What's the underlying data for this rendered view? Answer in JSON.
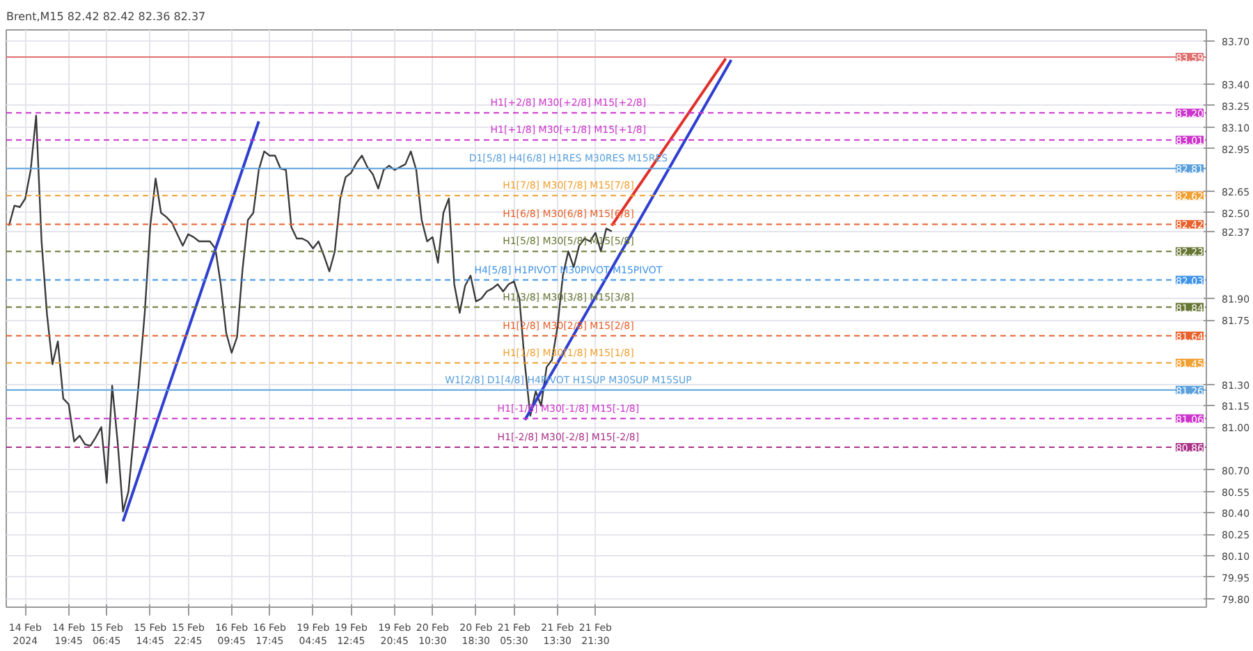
{
  "chart_data": {
    "type": "line",
    "title": "Brent,M15 82.42 82.42 82.36 82.37",
    "categories": [
      null,
      null,
      null,
      "14 Feb 2024",
      null,
      null,
      null,
      null,
      null,
      null,
      null,
      "14 Feb 19:45",
      null,
      null,
      null,
      null,
      null,
      null,
      "15 Feb 06:45",
      null,
      null,
      null,
      null,
      null,
      null,
      null,
      "15 Feb 14:45",
      null,
      null,
      null,
      null,
      null,
      null,
      "15 Feb 22:45",
      null,
      null,
      null,
      null,
      null,
      null,
      null,
      "16 Feb 09:45",
      null,
      null,
      null,
      null,
      null,
      null,
      "16 Feb 17:45",
      null,
      null,
      null,
      null,
      null,
      null,
      null,
      "19 Feb 04:45",
      null,
      null,
      null,
      null,
      null,
      null,
      "19 Feb 12:45",
      null,
      null,
      null,
      null,
      null,
      null,
      null,
      "19 Feb 20:45",
      null,
      null,
      null,
      null,
      null,
      null,
      "20 Feb 10:30",
      null,
      null,
      null,
      null,
      null,
      null,
      null,
      "20 Feb 18:30",
      null,
      null,
      null,
      null,
      null,
      null,
      "21 Feb 05:30",
      null,
      null,
      null,
      null,
      null,
      null,
      null,
      "21 Feb 13:30",
      null,
      null,
      null,
      null,
      null,
      null,
      "21 Feb 21:30",
      null,
      null,
      null,
      null,
      null,
      null,
      null,
      null,
      null,
      null,
      null,
      null,
      null,
      null,
      null,
      null,
      null,
      null,
      null,
      null,
      null,
      null,
      null,
      null,
      null,
      null,
      null,
      null,
      null,
      null,
      null,
      null,
      null,
      null,
      null,
      null,
      null,
      null,
      null,
      null,
      null,
      null,
      null,
      null,
      null,
      null,
      null,
      null,
      null,
      null,
      null,
      null,
      null,
      null,
      null,
      null,
      null,
      null,
      null,
      null,
      null,
      null,
      null,
      null,
      null,
      null,
      null,
      null,
      null,
      null,
      null,
      null,
      null,
      null,
      null,
      null,
      null,
      null,
      null,
      null,
      null,
      null,
      null,
      null,
      null,
      null,
      null,
      null,
      null,
      null,
      null,
      null,
      null,
      null,
      null,
      null,
      null,
      null,
      null,
      null,
      null,
      null,
      null,
      null,
      null,
      null,
      null,
      null,
      null,
      null,
      null,
      null
    ],
    "ylim": [
      79.74,
      83.78
    ],
    "yticks": [
      {
        "value": 79.8,
        "label": "79.80"
      },
      {
        "value": 79.95,
        "label": "79.95"
      },
      {
        "value": 80.1,
        "label": "80.10"
      },
      {
        "value": 80.25,
        "label": "80.25"
      },
      {
        "value": 80.4,
        "label": "80.40"
      },
      {
        "value": 80.55,
        "label": "80.55"
      },
      {
        "value": 80.7,
        "label": "80.70"
      },
      {
        "value": 81.0,
        "label": "81.00"
      },
      {
        "value": 81.15,
        "label": "81.15"
      },
      {
        "value": 81.3,
        "label": "81.30"
      },
      {
        "value": 81.75,
        "label": "81.75"
      },
      {
        "value": 81.9,
        "label": "81.90"
      },
      {
        "value": 82.37,
        "label": "82.37"
      },
      {
        "value": 82.5,
        "label": "82.50"
      },
      {
        "value": 82.65,
        "label": "82.65"
      },
      {
        "value": 82.95,
        "label": "82.95"
      },
      {
        "value": 83.1,
        "label": "83.10"
      },
      {
        "value": 83.25,
        "label": "83.25"
      },
      {
        "value": 83.4,
        "label": "83.40"
      },
      {
        "value": 83.7,
        "label": "83.70"
      }
    ],
    "annotations": [
      {
        "text": "83.59",
        "y": 83.59
      },
      {
        "text": "83.20",
        "y": 83.2
      },
      {
        "text": "83.01",
        "y": 83.01
      },
      {
        "text": "82.81",
        "y": 82.81
      },
      {
        "text": "82.62",
        "y": 82.62
      },
      {
        "text": "82.42",
        "y": 82.42
      },
      {
        "text": "82.23",
        "y": 82.23
      },
      {
        "text": "82.03",
        "y": 82.03
      },
      {
        "text": "81.84",
        "y": 81.84
      },
      {
        "text": "81.64",
        "y": 81.64
      },
      {
        "text": "81.45",
        "y": 81.45
      },
      {
        "text": "81.26",
        "y": 81.26
      },
      {
        "text": "81.06",
        "y": 81.06
      },
      {
        "text": "80.86",
        "y": 80.86
      }
    ],
    "grid": true,
    "series": [
      {
        "color": "#3a3a3a",
        "values": [
          82.41,
          82.55,
          82.54,
          82.6,
          82.8,
          83.18,
          82.3,
          81.79,
          81.44,
          81.6,
          81.2,
          81.16,
          80.9,
          80.94,
          80.88,
          80.87,
          80.93,
          81.0,
          80.61,
          81.29,
          80.9,
          80.41,
          80.55,
          80.95,
          81.35,
          81.8,
          82.4,
          82.74,
          82.5,
          82.47,
          82.43,
          82.35,
          82.27,
          82.35,
          82.33,
          82.3,
          82.3,
          82.3,
          82.25,
          82.0,
          81.66,
          81.52,
          81.63,
          82.1,
          82.45,
          82.5,
          82.8,
          82.93,
          82.9,
          82.9,
          82.81,
          82.8,
          82.4,
          82.32,
          82.32,
          82.3,
          82.25,
          82.3,
          82.2,
          82.09,
          82.23,
          82.6,
          82.75,
          82.78,
          82.85,
          82.9,
          82.82,
          82.77,
          82.67,
          82.8,
          82.83,
          82.8,
          82.82,
          82.84,
          82.93,
          82.8,
          82.45,
          82.3,
          82.33,
          82.15,
          82.5,
          82.6,
          82.0,
          81.8,
          81.99,
          82.06,
          81.88,
          81.9,
          81.95,
          81.97,
          82.0,
          81.95,
          82.0,
          82.02,
          81.9,
          81.44,
          81.08,
          81.25,
          81.15,
          81.42,
          81.47,
          81.7,
          82.06,
          82.23,
          82.12,
          82.27,
          82.32,
          82.3,
          82.36,
          82.23,
          82.39,
          82.37,
          null,
          null,
          null,
          null,
          null,
          null,
          null,
          null,
          null,
          null,
          null,
          null,
          null,
          null,
          null,
          null,
          null,
          null,
          null,
          null,
          null,
          null,
          null,
          null,
          null,
          null,
          null,
          null,
          null,
          null,
          null,
          null,
          null,
          null,
          null,
          null,
          null,
          null,
          null,
          null,
          null,
          null,
          null,
          null,
          null,
          null,
          null,
          null,
          null,
          null,
          null,
          null,
          null,
          null,
          null,
          null,
          null,
          null,
          null,
          null,
          null,
          null,
          null,
          null,
          null,
          null,
          null,
          null,
          null,
          null,
          null,
          null,
          null,
          null,
          null,
          null,
          null,
          null,
          null,
          null,
          null,
          null,
          null,
          null,
          null,
          null,
          null,
          null,
          null,
          null,
          null,
          null,
          null,
          null,
          null,
          null,
          null,
          null,
          null,
          null,
          null,
          null,
          null,
          null,
          null,
          null,
          null,
          null,
          null
        ]
      },
      {
        "color": "#2f3fcf",
        "values": [
          null,
          null,
          null,
          null,
          null,
          null,
          null,
          null,
          null,
          null,
          null,
          null,
          null,
          null,
          null,
          null,
          null,
          null,
          null,
          null,
          null,
          80.34,
          null,
          null,
          null,
          null,
          null,
          null,
          null,
          null,
          null,
          null,
          null,
          null,
          null,
          null,
          null,
          null,
          null,
          null,
          null,
          null,
          null,
          null,
          null,
          null,
          83.14,
          null,
          null,
          null,
          null,
          null,
          null,
          null,
          null,
          null,
          null,
          null,
          null,
          null,
          null,
          null,
          null,
          null,
          null,
          null,
          null,
          null,
          null,
          null,
          null,
          null,
          null,
          null,
          null,
          null,
          null,
          null,
          null,
          null,
          null,
          null,
          null,
          null,
          null,
          null,
          null,
          null,
          null,
          null,
          null,
          null,
          null,
          null,
          null,
          null,
          null,
          null,
          null,
          null,
          null,
          null,
          null,
          null,
          null,
          null,
          null,
          null,
          null,
          null,
          null,
          null,
          null,
          null,
          null,
          null,
          null,
          null,
          null,
          null,
          null,
          null,
          null,
          null,
          null,
          null,
          null,
          null,
          null,
          null,
          null,
          null,
          null,
          null,
          null,
          null,
          null,
          null,
          null,
          null,
          null,
          null,
          null,
          null,
          null,
          null,
          null,
          null,
          null,
          null,
          null,
          null,
          null,
          null,
          null,
          null,
          null,
          null,
          null,
          null,
          null,
          null,
          null,
          null,
          null,
          null,
          null,
          null,
          null,
          null,
          null,
          null,
          null,
          null,
          null,
          null,
          null,
          null,
          null,
          null,
          null,
          null,
          null,
          null,
          null,
          null,
          null,
          null,
          null,
          null,
          null,
          null,
          null,
          null,
          null,
          null,
          null,
          null,
          null,
          null,
          null,
          null,
          null,
          null,
          null,
          null,
          null,
          null,
          null,
          null,
          null,
          null,
          null,
          null,
          null,
          null,
          null,
          null,
          null,
          null,
          null
        ]
      },
      {
        "color": "#2f3fcf",
        "values": [
          null,
          null,
          null,
          null,
          null,
          null,
          null,
          null,
          null,
          null,
          null,
          null,
          null,
          null,
          null,
          null,
          null,
          null,
          null,
          null,
          null,
          null,
          null,
          null,
          null,
          null,
          null,
          null,
          null,
          null,
          null,
          null,
          null,
          null,
          null,
          null,
          null,
          null,
          null,
          null,
          null,
          null,
          null,
          null,
          null,
          null,
          null,
          null,
          null,
          null,
          null,
          null,
          null,
          null,
          null,
          null,
          null,
          null,
          null,
          null,
          null,
          null,
          null,
          null,
          null,
          null,
          null,
          null,
          null,
          null,
          null,
          null,
          null,
          null,
          null,
          null,
          null,
          null,
          null,
          null,
          null,
          null,
          null,
          null,
          null,
          null,
          null,
          null,
          null,
          null,
          null,
          null,
          null,
          null,
          null,
          81.05,
          null,
          null,
          null,
          null,
          null,
          null,
          null,
          null,
          null,
          null,
          null,
          null,
          null,
          null,
          null,
          null,
          null,
          null,
          null,
          null,
          null,
          null,
          null,
          null,
          null,
          null,
          null,
          null,
          null,
          null,
          null,
          null,
          null,
          null,
          null,
          null,
          null,
          83.57,
          null,
          null,
          null,
          null,
          null,
          null,
          null,
          null,
          null,
          null,
          null,
          null,
          null,
          null,
          null,
          null,
          null,
          null,
          null,
          null,
          null,
          null,
          null,
          null,
          null,
          null,
          null,
          null,
          null,
          null,
          null,
          null,
          null,
          null,
          null,
          null,
          null,
          null,
          null,
          null,
          null,
          null,
          null,
          null,
          null,
          null,
          null,
          null,
          null,
          null,
          null,
          null,
          null,
          null,
          null,
          null,
          null,
          null,
          null,
          null,
          null,
          null,
          null,
          null,
          null,
          null,
          null,
          null,
          null,
          null,
          null,
          null,
          null,
          null,
          null,
          null,
          null,
          null,
          null,
          null,
          null,
          null,
          null,
          null,
          null,
          null,
          null
        ]
      },
      {
        "color": "#e0302a",
        "values": [
          null,
          null,
          null,
          null,
          null,
          null,
          null,
          null,
          null,
          null,
          null,
          null,
          null,
          null,
          null,
          null,
          null,
          null,
          null,
          null,
          null,
          null,
          null,
          null,
          null,
          null,
          null,
          null,
          null,
          null,
          null,
          null,
          null,
          null,
          null,
          null,
          null,
          null,
          null,
          null,
          null,
          null,
          null,
          null,
          null,
          null,
          null,
          null,
          null,
          null,
          null,
          null,
          null,
          null,
          null,
          null,
          null,
          null,
          null,
          null,
          null,
          null,
          null,
          null,
          null,
          null,
          null,
          null,
          null,
          null,
          null,
          null,
          null,
          null,
          null,
          null,
          null,
          null,
          null,
          null,
          null,
          null,
          null,
          null,
          null,
          null,
          null,
          null,
          null,
          null,
          null,
          null,
          null,
          null,
          null,
          null,
          null,
          null,
          null,
          null,
          null,
          null,
          null,
          null,
          null,
          null,
          null,
          null,
          null,
          null,
          null,
          82.41,
          null,
          null,
          null,
          null,
          null,
          null,
          null,
          null,
          null,
          null,
          null,
          null,
          null,
          null,
          null,
          null,
          null,
          null,
          null,
          null,
          83.58,
          null,
          null,
          null,
          null,
          null,
          null,
          null,
          null,
          null,
          null,
          null,
          null,
          null,
          null,
          null,
          null,
          null,
          null,
          null,
          null,
          null,
          null,
          null,
          null,
          null,
          null,
          null,
          null,
          null,
          null,
          null,
          null,
          null,
          null,
          null,
          null,
          null,
          null,
          null,
          null,
          null,
          null,
          null,
          null,
          null,
          null,
          null,
          null,
          null,
          null,
          null,
          null,
          null,
          null,
          null,
          null,
          null,
          null,
          null,
          null,
          null,
          null,
          null,
          null,
          null,
          null,
          null,
          null,
          null,
          null,
          null,
          null,
          null,
          null,
          null,
          null,
          null,
          null,
          null,
          null,
          null,
          null,
          null,
          null,
          null,
          null,
          null,
          null
        ]
      }
    ],
    "ref_lines": [
      {
        "axis": "y",
        "value": 83.59,
        "label": null,
        "color": "#e07070",
        "line_style": "solid"
      },
      {
        "axis": "y",
        "value": 83.2,
        "label": "H1[+2/8] M30[+2/8] M15[+2/8]",
        "color": "#cc33cc",
        "line_style": "dashed"
      },
      {
        "axis": "y",
        "value": 83.01,
        "label": "H1[+1/8] M30[+1/8] M15[+1/8]",
        "color": "#cc33cc",
        "line_style": "dashed"
      },
      {
        "axis": "y",
        "value": 82.81,
        "label": "D1[5/8] H4[6/8] H1RES M30RES M15RES",
        "color": "#5aa0dc",
        "line_style": "solid"
      },
      {
        "axis": "y",
        "value": 82.62,
        "label": "H1[7/8] M30[7/8] M15[7/8]",
        "color": "#f0a030",
        "line_style": "dashed"
      },
      {
        "axis": "y",
        "value": 82.42,
        "label": "H1[6/8] M30[6/8] M15[6/8]",
        "color": "#e8602a",
        "line_style": "dashed"
      },
      {
        "axis": "y",
        "value": 82.23,
        "label": "H1[5/8] M30[5/8] M15[5/8]",
        "color": "#667733",
        "line_style": "dashed"
      },
      {
        "axis": "y",
        "value": 82.03,
        "label": "H4[5/8] H1PIVOT M30PIVOT M15PIVOT",
        "color": "#3f93e8",
        "line_style": "dashed"
      },
      {
        "axis": "y",
        "value": 81.84,
        "label": "H1[3/8] M30[3/8] M15[3/8]",
        "color": "#667733",
        "line_style": "dashed"
      },
      {
        "axis": "y",
        "value": 81.64,
        "label": "H1[2/8] M30[2/8] M15[2/8]",
        "color": "#e8602a",
        "line_style": "dashed"
      },
      {
        "axis": "y",
        "value": 81.45,
        "label": "H1[1/8] M30[1/8] M15[1/8]",
        "color": "#f0a030",
        "line_style": "dashed"
      },
      {
        "axis": "y",
        "value": 81.26,
        "label": "W1[2/8] D1[4/8] H4PIVOT H1SUP M30SUP M15SUP",
        "color": "#5aa0dc",
        "line_style": "solid"
      },
      {
        "axis": "y",
        "value": 81.06,
        "label": "H1[-1/8] M30[-1/8] M15[-1/8]",
        "color": "#cc33cc",
        "line_style": "dashed"
      },
      {
        "axis": "y",
        "value": 80.86,
        "label": "H1[-2/8] M30[-2/8] M15[-2/8]",
        "color": "#aa3388",
        "line_style": "dashed"
      }
    ]
  }
}
